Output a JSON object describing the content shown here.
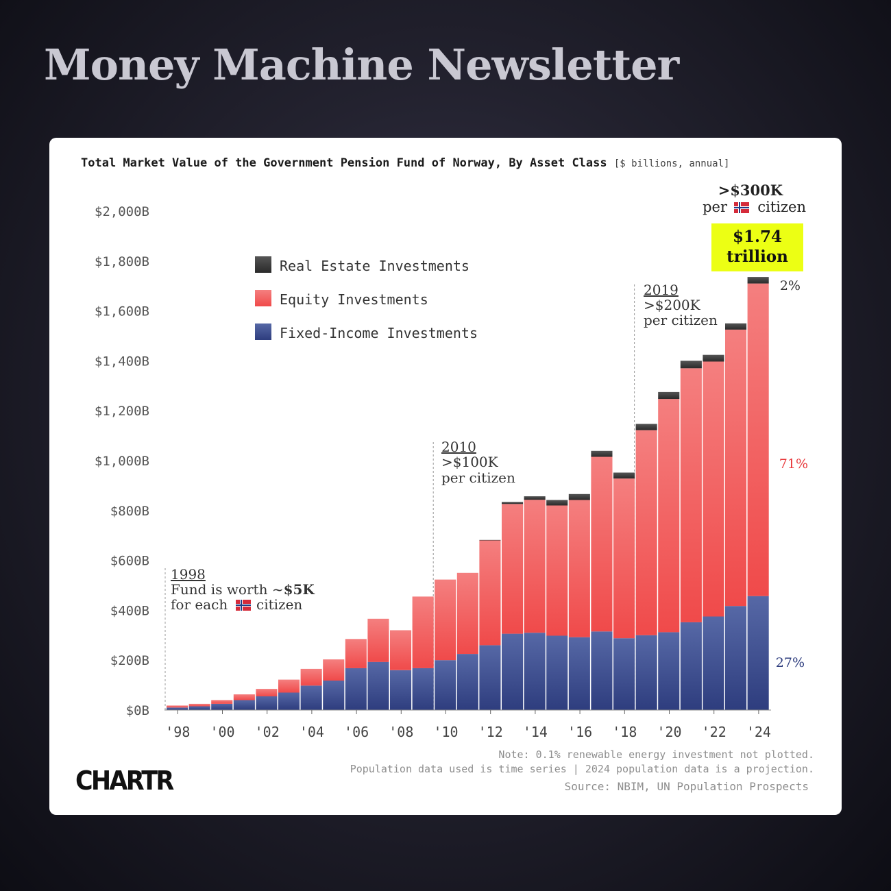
{
  "header": {
    "title": "Money Machine Newsletter"
  },
  "chart_data": {
    "type": "bar",
    "stacked": true,
    "title": "Total Market Value of the Government Pension Fund of Norway, By Asset Class",
    "units": "[$ billions, annual]",
    "categories": [
      "1998",
      "1999",
      "2000",
      "2001",
      "2002",
      "2003",
      "2004",
      "2005",
      "2006",
      "2007",
      "2008",
      "2009",
      "2010",
      "2011",
      "2012",
      "2013",
      "2014",
      "2015",
      "2016",
      "2017",
      "2018",
      "2019",
      "2020",
      "2021",
      "2022",
      "2023",
      "2024"
    ],
    "x_tick_labels": [
      "'98",
      "'00",
      "'02",
      "'04",
      "'06",
      "'08",
      "'10",
      "'12",
      "'14",
      "'16",
      "'18",
      "'20",
      "'22",
      "'24"
    ],
    "y_tick_labels": [
      "$0B",
      "$200B",
      "$400B",
      "$600B",
      "$800B",
      "$1,000B",
      "$1,200B",
      "$1,400B",
      "$1,600B",
      "$1,800B",
      "$2,000B"
    ],
    "ylim": [
      0,
      2000
    ],
    "series": [
      {
        "name": "Fixed-Income Investments",
        "color": "#3a4a8c",
        "values": [
          10,
          15,
          25,
          40,
          55,
          70,
          98,
          118,
          168,
          193,
          160,
          168,
          200,
          225,
          260,
          306,
          310,
          298,
          292,
          315,
          288,
          300,
          312,
          352,
          375,
          417,
          457
        ]
      },
      {
        "name": "Equity Investments",
        "color": "#f05a5a",
        "values": [
          8,
          10,
          15,
          23,
          30,
          52,
          67,
          85,
          117,
          173,
          160,
          287,
          323,
          325,
          420,
          520,
          533,
          522,
          550,
          700,
          640,
          822,
          935,
          1018,
          1022,
          1108,
          1253
        ]
      },
      {
        "name": "Real Estate Investments",
        "color": "#3c3c3c",
        "values": [
          0,
          0,
          0,
          0,
          0,
          0,
          0,
          0,
          0,
          0,
          0,
          0,
          0,
          0,
          2,
          8,
          14,
          22,
          24,
          24,
          24,
          25,
          28,
          30,
          27,
          25,
          26
        ]
      }
    ],
    "legend_order": [
      "Real Estate Investments",
      "Equity Investments",
      "Fixed-Income Investments"
    ],
    "legend_position": "top-left",
    "grid": false,
    "right_labels": {
      "real_estate": "2%",
      "equity": "71%",
      "fixed_income": "27%"
    },
    "annotations": [
      {
        "year_label": "1998",
        "lines": [
          "Fund is worth ~",
          "$5K",
          "for each",
          "citizen"
        ],
        "x": "1998"
      },
      {
        "year_label": "2010",
        "lines": [
          ">$100K",
          "per citizen"
        ],
        "x": "2010"
      },
      {
        "year_label": "2019",
        "lines": [
          ">$200K",
          "per citizen"
        ],
        "x": "2019"
      }
    ],
    "top_note": {
      "line1": ">$300K",
      "line2a": "per",
      "line2b": "citizen"
    },
    "highlight": {
      "line1": "$1.74",
      "line2": "trillion",
      "color": "#ecff14"
    }
  },
  "footer": {
    "logo": "CHARTR",
    "note1": "Note: 0.1% renewable energy investment not plotted.",
    "note2": "Population data used is time series | 2024 population data is a projection.",
    "source": "Source: NBIM, UN Population Prospects"
  },
  "icons": {
    "flag": "norway-flag-icon"
  }
}
